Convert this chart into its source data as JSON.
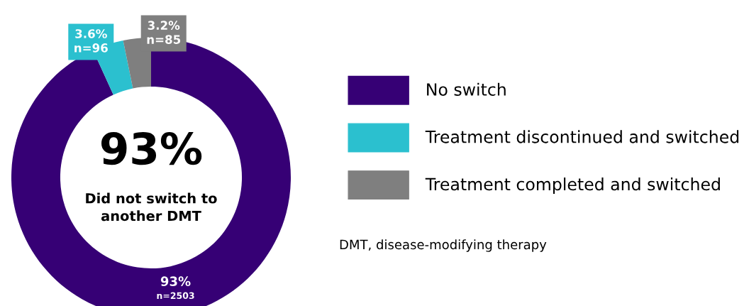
{
  "chart_data": {
    "type": "donut",
    "categories": [
      "No switch",
      "Treatment discontinued and switched",
      "Treatment completed and switched"
    ],
    "values": [
      93,
      3.6,
      3.2
    ],
    "colors": [
      "#360075",
      "#2bc0cf",
      "#7f7f7f"
    ],
    "value_labels": [
      "93%\nn=2503",
      "3.6%\nn=96",
      "3.2%\nn=85"
    ],
    "legend": "right",
    "annotations": [
      "93%",
      "Did not switch to\nanother DMT",
      "DMT, disease-modifying therapy"
    ]
  }
}
